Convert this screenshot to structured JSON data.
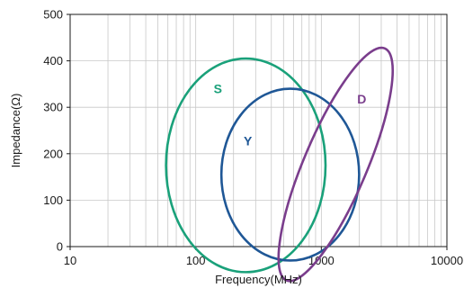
{
  "chart_data": {
    "type": "region-ellipses",
    "title": "",
    "xlabel": "Frequency(MHz)",
    "ylabel": "Impedance(Ω)",
    "xscale": "log",
    "xlim": [
      10,
      10000
    ],
    "ylim": [
      0,
      500
    ],
    "x_ticks": [
      {
        "value": 10,
        "label": "10"
      },
      {
        "value": 100,
        "label": "100"
      },
      {
        "value": 1000,
        "label": "1000"
      },
      {
        "value": 10000,
        "label": "10000"
      }
    ],
    "y_ticks": [
      {
        "value": 0,
        "label": "0"
      },
      {
        "value": 100,
        "label": "100"
      },
      {
        "value": 200,
        "label": "200"
      },
      {
        "value": 300,
        "label": "300"
      },
      {
        "value": 400,
        "label": "400"
      },
      {
        "value": 500,
        "label": "500"
      }
    ],
    "grid": {
      "x_minor_log": true,
      "y_major": true
    },
    "series": [
      {
        "name": "S",
        "color": "#1aa17a",
        "label_at": {
          "x": 150,
          "y": 340
        },
        "ellipse": {
          "x_left": 58,
          "x_right": 1080,
          "y_center": 175,
          "y_radius": 230,
          "rotation_deg": 0
        }
      },
      {
        "name": "Y",
        "color": "#1f5796",
        "label_at": {
          "x": 260,
          "y": 228
        },
        "ellipse": {
          "x_left": 160,
          "x_right": 2000,
          "y_center": 155,
          "y_radius": 185,
          "rotation_deg": 0
        }
      },
      {
        "name": "D",
        "color": "#7a3d8c",
        "label_at": {
          "x": 2100,
          "y": 318
        },
        "ellipse": {
          "x_center": 1300,
          "y_center": 177,
          "semi_major_deg_px": 140,
          "semi_minor_px": 35,
          "rotation_deg": -67
        }
      }
    ]
  }
}
